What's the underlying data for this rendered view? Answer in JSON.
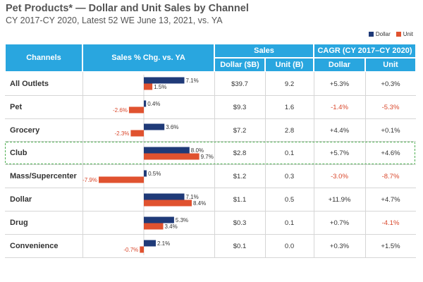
{
  "title": "Pet Products* — Dollar and Unit Sales by Channel",
  "subtitle": "CY 2017-CY 2020, Latest 52 WE June 13, 2021, vs. YA",
  "legend": {
    "dollar": "Dollar",
    "unit": "Unit"
  },
  "colors": {
    "dollar": "#1f3a78",
    "unit": "#e0522f",
    "header": "#29a6df",
    "negative": "#d9472b"
  },
  "headers": {
    "channels": "Channels",
    "sales_chg": "Sales % Chg. vs. YA",
    "sales": "Sales",
    "cagr": "CAGR (CY 2017–CY 2020)",
    "sales_dollar": "Dollar ($B)",
    "sales_unit": "Unit (B)",
    "cagr_dollar": "Dollar",
    "cagr_unit": "Unit"
  },
  "chart_data": {
    "type": "bar",
    "orientation": "horizontal",
    "title": "Sales % Chg. vs. YA",
    "categories": [
      "All Outlets",
      "Pet",
      "Grocery",
      "Club",
      "Mass/Supercenter",
      "Dollar",
      "Drug",
      "Convenience"
    ],
    "series": [
      {
        "name": "Dollar",
        "values": [
          7.1,
          0.4,
          3.6,
          8.0,
          0.5,
          7.1,
          5.3,
          2.1
        ],
        "labels": [
          "7.1%",
          "0.4%",
          "3.6%",
          "8.0%",
          "0.5%",
          "7.1%",
          "5.3%",
          "2.1%"
        ]
      },
      {
        "name": "Unit",
        "values": [
          1.5,
          -2.6,
          -2.3,
          9.7,
          -7.9,
          8.4,
          3.4,
          -0.7
        ],
        "labels": [
          "1.5%",
          "-2.6%",
          "-2.3%",
          "9.7%",
          "-7.9%",
          "8.4%",
          "3.4%",
          "-0.7%"
        ]
      }
    ],
    "xlim": [
      -8.5,
      10.5
    ]
  },
  "rows": [
    {
      "channel": "All Outlets",
      "sales_dollar": "$39.7",
      "sales_unit": "9.2",
      "cagr_dollar": "+5.3%",
      "cagr_unit": "+0.3%"
    },
    {
      "channel": "Pet",
      "sales_dollar": "$9.3",
      "sales_unit": "1.6",
      "cagr_dollar": "-1.4%",
      "cagr_unit": "-5.3%"
    },
    {
      "channel": "Grocery",
      "sales_dollar": "$7.2",
      "sales_unit": "2.8",
      "cagr_dollar": "+4.4%",
      "cagr_unit": "+0.1%"
    },
    {
      "channel": "Club",
      "sales_dollar": "$2.8",
      "sales_unit": "0.1",
      "cagr_dollar": "+5.7%",
      "cagr_unit": "+4.6%"
    },
    {
      "channel": "Mass/Supercenter",
      "sales_dollar": "$1.2",
      "sales_unit": "0.3",
      "cagr_dollar": "-3.0%",
      "cagr_unit": "-8.7%"
    },
    {
      "channel": "Dollar",
      "sales_dollar": "$1.1",
      "sales_unit": "0.5",
      "cagr_dollar": "+11.9%",
      "cagr_unit": "+4.7%"
    },
    {
      "channel": "Drug",
      "sales_dollar": "$0.3",
      "sales_unit": "0.1",
      "cagr_dollar": "+0.7%",
      "cagr_unit": "-4.1%"
    },
    {
      "channel": "Convenience",
      "sales_dollar": "$0.1",
      "sales_unit": "0.0",
      "cagr_dollar": "+0.3%",
      "cagr_unit": "+1.5%"
    }
  ]
}
